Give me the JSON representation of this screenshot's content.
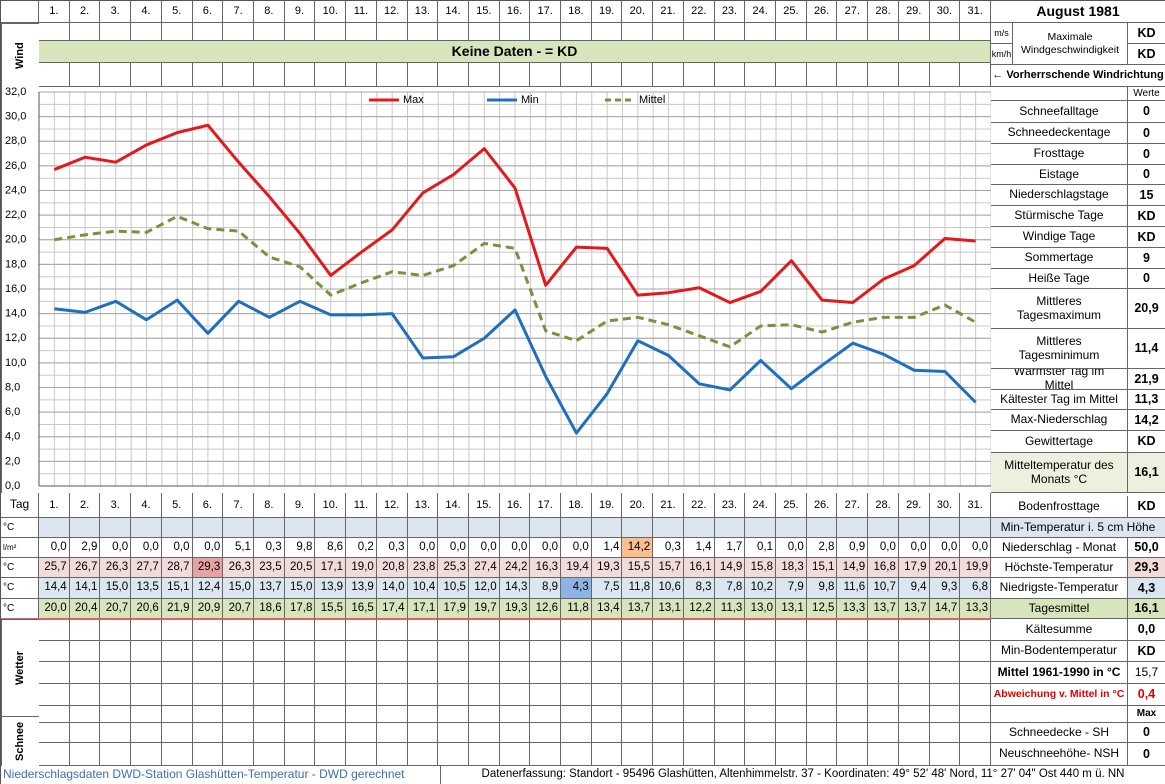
{
  "chart_data": {
    "type": "line",
    "categories": [
      "1.",
      "2.",
      "3.",
      "4.",
      "5.",
      "6.",
      "7.",
      "8.",
      "9.",
      "10.",
      "11.",
      "12.",
      "13.",
      "14.",
      "15.",
      "16.",
      "17.",
      "18.",
      "19.",
      "20.",
      "21.",
      "22.",
      "23.",
      "24.",
      "25.",
      "26.",
      "27.",
      "28.",
      "29.",
      "30.",
      "31."
    ],
    "series": [
      {
        "name": "Max",
        "color": "#e3191c",
        "dash": false,
        "values": [
          25.7,
          26.7,
          26.3,
          27.7,
          28.7,
          29.3,
          26.3,
          23.5,
          20.5,
          17.1,
          19.0,
          20.8,
          23.8,
          25.3,
          27.4,
          24.2,
          16.3,
          19.4,
          19.3,
          15.5,
          15.7,
          16.1,
          14.9,
          15.8,
          18.3,
          15.1,
          14.9,
          16.8,
          17.9,
          20.1,
          19.9
        ],
        "value_labels": [
          "25,7",
          "26,7",
          "26,3",
          "27,7",
          "28,7",
          "29,3",
          "26,3",
          "23,5",
          "20,5",
          "17,1",
          "19,0",
          "20,8",
          "23,8",
          "25,3",
          "27,4",
          "24,2",
          "16,3",
          "19,4",
          "19,3",
          "15,5",
          "15,7",
          "16,1",
          "14,9",
          "15,8",
          "18,3",
          "15,1",
          "14,9",
          "16,8",
          "17,9",
          "20,1",
          "19,9"
        ]
      },
      {
        "name": "Min",
        "color": "#1f6fc0",
        "dash": false,
        "values": [
          14.4,
          14.1,
          15.0,
          13.5,
          15.1,
          12.4,
          15.0,
          13.7,
          15.0,
          13.9,
          13.9,
          14.0,
          10.4,
          10.5,
          12.0,
          14.3,
          8.9,
          4.3,
          7.5,
          11.8,
          10.6,
          8.3,
          7.8,
          10.2,
          7.9,
          9.8,
          11.6,
          10.7,
          9.4,
          9.3,
          6.8
        ],
        "value_labels": [
          "14,4",
          "14,1",
          "15,0",
          "13,5",
          "15,1",
          "12,4",
          "15,0",
          "13,7",
          "15,0",
          "13,9",
          "13,9",
          "14,0",
          "10,4",
          "10,5",
          "12,0",
          "14,3",
          "8,9",
          "4,3",
          "7,5",
          "11,8",
          "10,6",
          "8,3",
          "7,8",
          "10,2",
          "7,9",
          "9,8",
          "11,6",
          "10,7",
          "9,4",
          "9,3",
          "6,8"
        ]
      },
      {
        "name": "Mittel",
        "color": "#77933c",
        "dash": true,
        "values": [
          20.0,
          20.4,
          20.7,
          20.6,
          21.9,
          20.9,
          20.7,
          18.6,
          17.8,
          15.5,
          16.5,
          17.4,
          17.1,
          17.9,
          19.7,
          19.3,
          12.6,
          11.8,
          13.4,
          13.7,
          13.1,
          12.2,
          11.3,
          13.0,
          13.1,
          12.5,
          13.3,
          13.7,
          13.7,
          14.7,
          13.3
        ],
        "value_labels": [
          "20,0",
          "20,4",
          "20,7",
          "20,6",
          "21,9",
          "20,9",
          "20,7",
          "18,6",
          "17,8",
          "15,5",
          "16,5",
          "17,4",
          "17,1",
          "17,9",
          "19,7",
          "19,3",
          "12,6",
          "11,8",
          "13,4",
          "13,7",
          "13,1",
          "12,2",
          "11,3",
          "13,0",
          "13,1",
          "12,5",
          "13,3",
          "13,7",
          "13,7",
          "14,7",
          "13,3"
        ]
      }
    ],
    "ylim": [
      0,
      32
    ],
    "yticks": [
      {
        "value": 0,
        "label": "0,0"
      },
      {
        "value": 2,
        "label": "2,0"
      },
      {
        "value": 4,
        "label": "4,0"
      },
      {
        "value": 6,
        "label": "6,0"
      },
      {
        "value": 8,
        "label": "8,0"
      },
      {
        "value": 10,
        "label": "10,0"
      },
      {
        "value": 12,
        "label": "12,0"
      },
      {
        "value": 14,
        "label": "14,0"
      },
      {
        "value": 16,
        "label": "16,0"
      },
      {
        "value": 18,
        "label": "18,0"
      },
      {
        "value": 20,
        "label": "20,0"
      },
      {
        "value": 22,
        "label": "22,0"
      },
      {
        "value": 24,
        "label": "24,0"
      },
      {
        "value": 26,
        "label": "26,0"
      },
      {
        "value": 28,
        "label": "28,0"
      },
      {
        "value": 30,
        "label": "30,0"
      },
      {
        "value": 32,
        "label": "32,0"
      }
    ],
    "grid": true,
    "legend": "top"
  },
  "sheet": {
    "title": "August 1981",
    "banner": "Keine Daten -  = KD",
    "side_labels": {
      "wind": "Wind",
      "tag": "Tag",
      "wetter": "Wetter",
      "schnee": "Schnee"
    },
    "units": [
      "°C",
      "l/m²",
      "°C",
      "°C",
      "°C"
    ],
    "precipitation": [
      "0,0",
      "2,9",
      "0,0",
      "0,0",
      "0,0",
      "0,0",
      "5,1",
      "0,3",
      "9,8",
      "8,6",
      "0,2",
      "0,3",
      "0,0",
      "0,0",
      "0,0",
      "0,0",
      "0,0",
      "0,0",
      "1,4",
      "14,2",
      "0,3",
      "1,4",
      "1,7",
      "0,1",
      "0,0",
      "2,8",
      "0,9",
      "0,0",
      "0,0",
      "0,0",
      "0,0"
    ],
    "wind": {
      "label": "Maximale Windgeschwindigkeit",
      "rows": [
        {
          "unit": "m/s",
          "value": "KD"
        },
        {
          "unit": "km/h",
          "value": "KD"
        }
      ],
      "direction": "← Vorherrschende Windrichtung"
    },
    "values_header": "Werte",
    "stats": [
      {
        "label": "Schneefalltage",
        "value": "0"
      },
      {
        "label": "Schneedeckentage",
        "value": "0"
      },
      {
        "label": "Frosttage",
        "value": "0"
      },
      {
        "label": "Eistage",
        "value": "0"
      },
      {
        "label": "Niederschlagstage",
        "value": "15"
      },
      {
        "label": "Stürmische Tage",
        "value": "KD"
      },
      {
        "label": "Windige Tage",
        "value": "KD"
      },
      {
        "label": "Sommertage",
        "value": "9"
      },
      {
        "label": "Heiße Tage",
        "value": "0"
      },
      {
        "label": "Mittleres Tagesmaximum",
        "value": "20,9"
      },
      {
        "label": "Mittleres Tagesminimum",
        "value": "11,4"
      },
      {
        "label": "Wärmster Tag im Mittel",
        "value": "21,9"
      },
      {
        "label": "Kältester Tag im Mittel",
        "value": "11,3"
      },
      {
        "label": "Max-Niederschlag",
        "value": "14,2"
      },
      {
        "label": "Gewittertage",
        "value": "KD"
      },
      {
        "label": "Mitteltemperatur des Monats °C",
        "value": "16,1"
      }
    ],
    "summary": [
      {
        "label": "Bodenfrosttage",
        "value": "KD"
      },
      {
        "label": "Min-Temperatur i. 5 cm Höhe"
      },
      {
        "label": "Niederschlag - Monat",
        "value": "50,0"
      },
      {
        "label": "Höchste-Temperatur",
        "value": "29,3"
      },
      {
        "label": "Niedrigste-Temperatur",
        "value": "4,3"
      },
      {
        "label": "Tagesmittel",
        "value": "16,1"
      },
      {
        "label": "Kältesumme",
        "value": "0,0"
      },
      {
        "label": "Min-Bodentemperatur",
        "value": "KD"
      },
      {
        "label": "Mittel 1961-1990 in °C",
        "value": "15,7"
      },
      {
        "label": "Abweichung v. Mittel in °C",
        "value": "0,4"
      },
      {
        "value": "Max"
      },
      {
        "label": "Schneedecke -  SH",
        "value": "0"
      },
      {
        "label": "Neuschneehöhe- NSH",
        "value": "0"
      }
    ],
    "footer_left": "Niederschlagsdaten DWD-Station Glashütten-Temperatur -  DWD gerechnet",
    "footer_right": "Datenerfassung: Standort -  95496  Glashütten, Altenhimmelstr. 37 - Koordinaten: 49° 52' 48' Nord,   11° 27' 04\" Ost   440 m ü. NN"
  }
}
